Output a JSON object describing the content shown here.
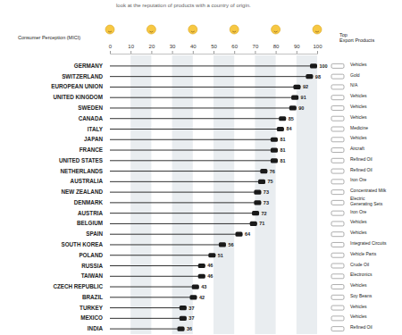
{
  "chart_data": {
    "type": "bar",
    "orientation": "horizontal",
    "subtitle": "look at the reputation of products with a country of origin.",
    "xlabel": "Consumer Perception (MICI)",
    "categories": [
      "GERMANY",
      "SWITZERLAND",
      "EUROPEAN UNION",
      "UNITED KINGDOM",
      "SWEDEN",
      "CANADA",
      "ITALY",
      "JAPAN",
      "FRANCE",
      "UNITED STATES",
      "NETHERLANDS",
      "AUSTRALIA",
      "NEW ZEALAND",
      "DENMARK",
      "AUSTRIA",
      "BELGIUM",
      "SPAIN",
      "SOUTH KOREA",
      "POLAND",
      "RUSSIA",
      "TAIWAN",
      "CZECH REPUBLIC",
      "BRAZIL",
      "TURKEY",
      "MEXICO",
      "INDIA"
    ],
    "values": [
      100,
      98,
      92,
      91,
      90,
      85,
      84,
      81,
      81,
      81,
      76,
      75,
      73,
      73,
      72,
      71,
      64,
      56,
      51,
      46,
      46,
      43,
      42,
      37,
      37,
      36
    ],
    "color": "#1a1a1a",
    "xlim": [
      0,
      100
    ],
    "xticks": [
      0,
      10,
      20,
      30,
      40,
      50,
      60,
      70,
      80,
      90,
      100
    ],
    "grid": true,
    "data_labels": true,
    "top_export_products_label": "Top Export Products",
    "top_export_products": [
      "Vehicles",
      "Gold",
      "N/A",
      "Vehicles",
      "Vehicles",
      "Vehicles",
      "Medicine",
      "Vehicles",
      "Aircraft",
      "Refined Oil",
      "Refined Oil",
      "Iron Ore",
      "Concentrated Milk",
      "Electric Generating Sets",
      "Iron Ore",
      "Vehicles",
      "Vehicles",
      "Integrated Circuits",
      "Vehicle Parts",
      "Crude Oil",
      "Electronics",
      "Vehicles",
      "Soy Beans",
      "Vehicles",
      "Vehicles",
      "Refined Oil"
    ]
  }
}
